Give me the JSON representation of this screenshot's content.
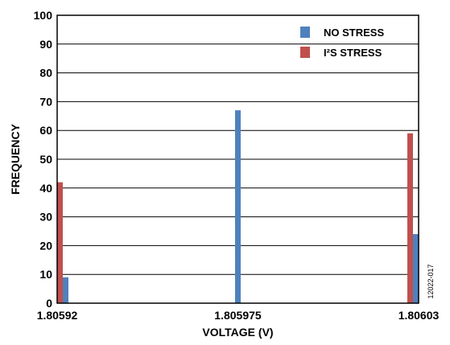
{
  "chart_data": {
    "type": "bar",
    "xlabel": "VOLTAGE (V)",
    "ylabel": "FREQUENCY",
    "x_ticks": [
      "1.80592",
      "1.805975",
      "1.80603"
    ],
    "ylim": [
      0,
      100
    ],
    "y_ticks": [
      "0",
      "10",
      "20",
      "30",
      "40",
      "50",
      "60",
      "70",
      "80",
      "90",
      "100"
    ],
    "grid": "horizontal",
    "legend_position": "top-right",
    "series": [
      {
        "name": "NO STRESS",
        "color": "#4f81bd",
        "points": [
          {
            "x": "1.80592",
            "value": 9
          },
          {
            "x": "1.805975",
            "value": 67
          },
          {
            "x": "1.80603",
            "value": 24
          }
        ]
      },
      {
        "name": "I²S STRESS",
        "color": "#c0504d",
        "points": [
          {
            "x": "1.80592",
            "value": 42
          },
          {
            "x": "1.80603",
            "value": 59
          }
        ]
      }
    ],
    "figure_id": "12022-017"
  }
}
